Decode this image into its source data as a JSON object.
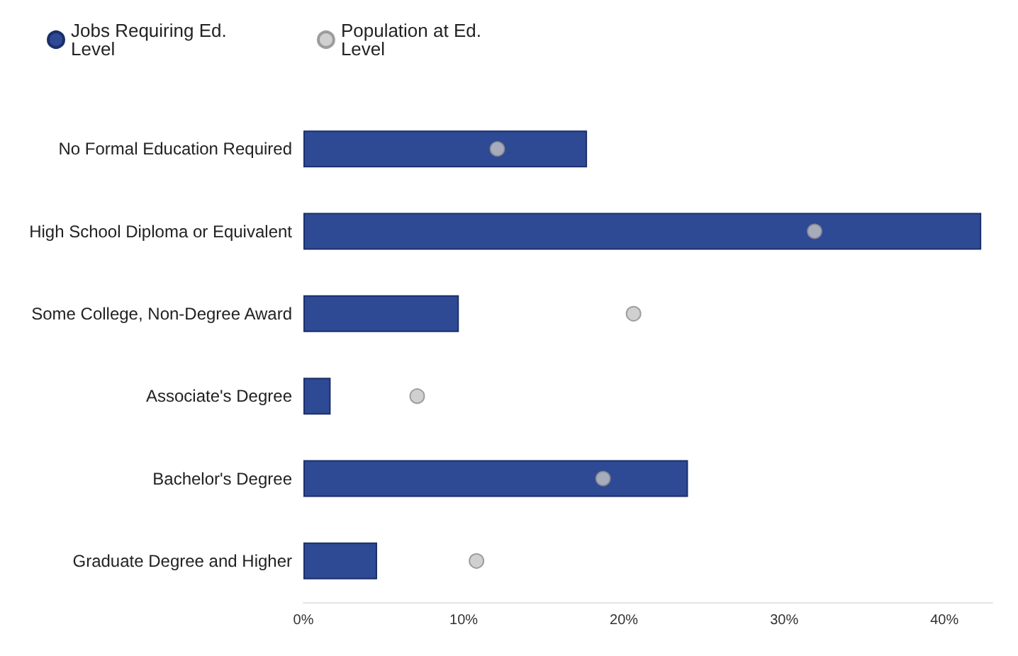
{
  "chart_data": {
    "type": "bar",
    "orientation": "horizontal",
    "categories": [
      "No Formal Education Required",
      "High School Diploma or Equivalent",
      "Some College, Non-Degree Award",
      "Associate's Degree",
      "Bachelor's Degree",
      "Graduate Degree and Higher"
    ],
    "series": [
      {
        "name": "Jobs Requiring Ed. Level",
        "color": "#2e4a94",
        "values": [
          17.7,
          42.3,
          9.7,
          1.7,
          24.0,
          4.6
        ]
      },
      {
        "name": "Population at Ed. Level",
        "type": "scatter",
        "color": "#c4c4c4",
        "values": [
          12.1,
          31.9,
          20.6,
          7.1,
          18.7,
          10.8
        ]
      }
    ],
    "xlim": [
      0,
      43
    ],
    "xticks": [
      {
        "value": 0,
        "label": "0%"
      },
      {
        "value": 10,
        "label": "10%"
      },
      {
        "value": 20,
        "label": "20%"
      },
      {
        "value": 30,
        "label": "30%"
      },
      {
        "value": 40,
        "label": "40%"
      }
    ],
    "grid": false,
    "legend": "top",
    "marker": "circle"
  }
}
